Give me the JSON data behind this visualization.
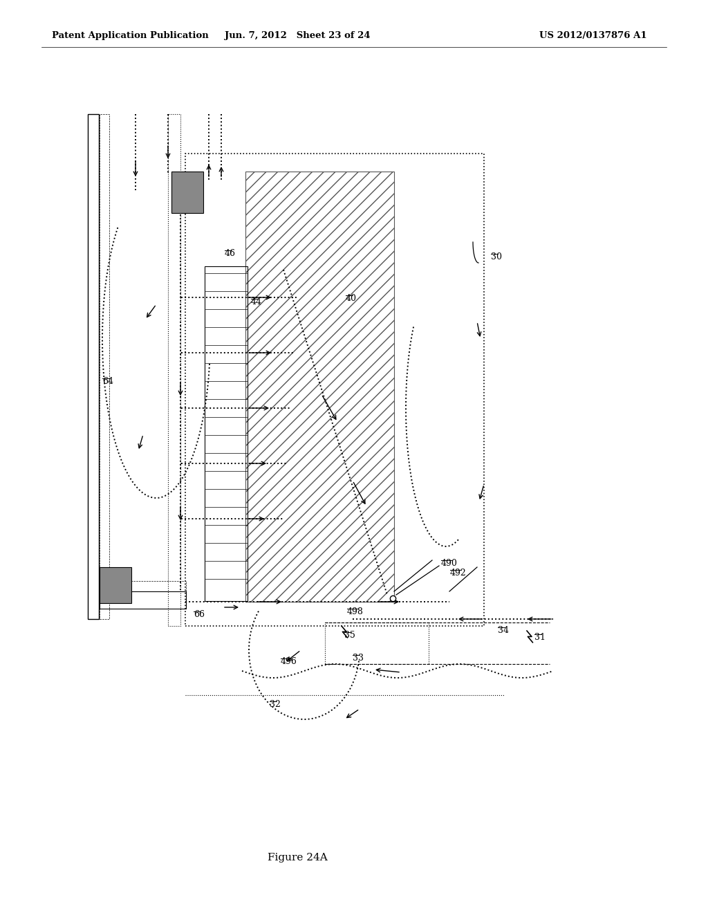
{
  "bg_color": "#ffffff",
  "header_left": "Patent Application Publication",
  "header_mid": "Jun. 7, 2012   Sheet 23 of 24",
  "header_right": "US 2012/0137876 A1",
  "figure_label": "Figure 24A"
}
